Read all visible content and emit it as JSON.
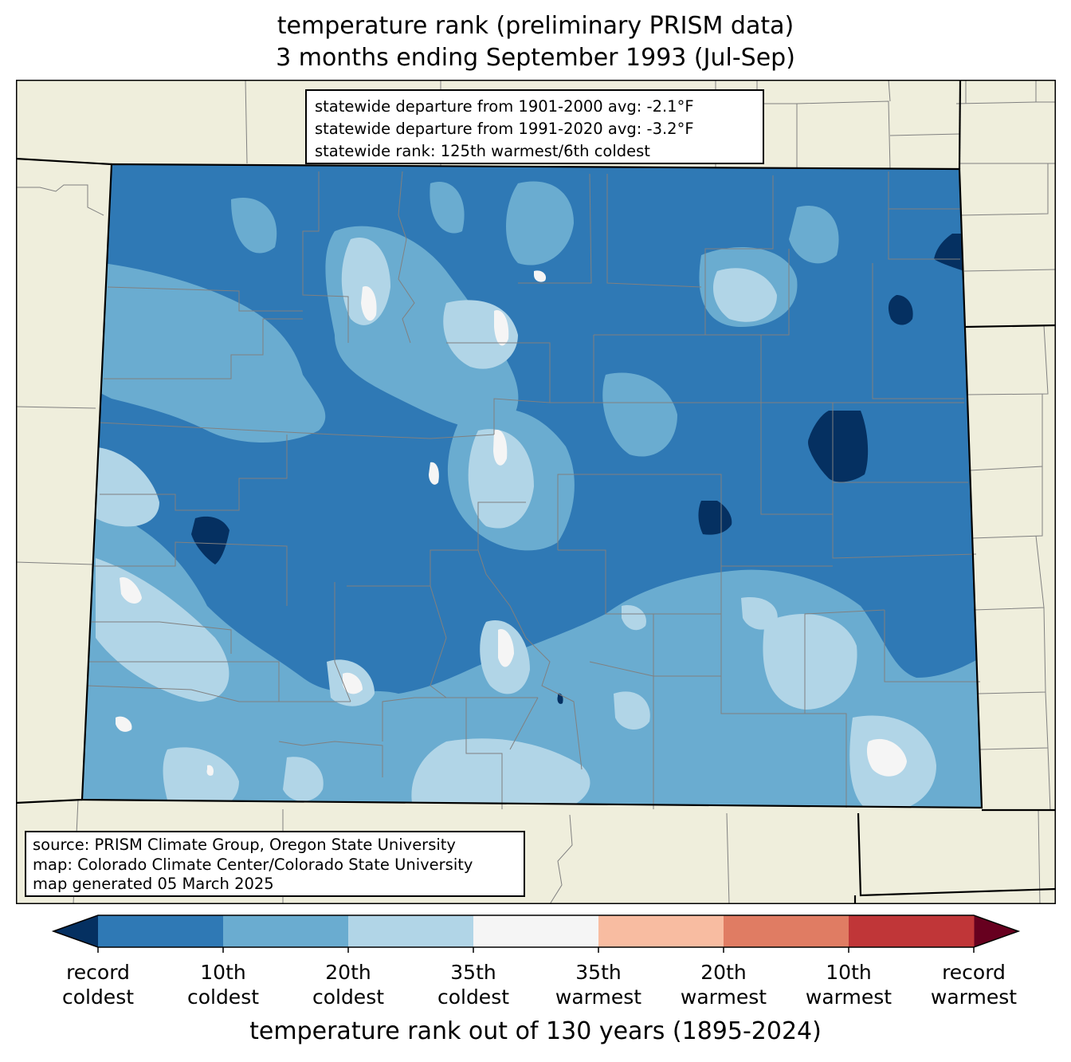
{
  "title": {
    "line1": "temperature rank (preliminary PRISM data)",
    "line2": "3 months ending September 1993 (Jul-Sep)"
  },
  "stats": {
    "departure_1901_2000": "statewide departure from 1901-2000 avg: -2.1°F",
    "departure_1991_2020": "statewide departure from 1991-2020 avg: -3.2°F",
    "rank": "statewide rank: 125th warmest/6th coldest"
  },
  "source": {
    "line1": "source: PRISM Climate Group, Oregon State University",
    "line2": "map: Colorado Climate Center/Colorado State University",
    "line3": "map generated 05 March 2025"
  },
  "colorbar": {
    "title": "temperature rank out of 130 years (1895-2024)",
    "extend_low_color": "#053061",
    "extend_high_color": "#67001f",
    "bins": [
      {
        "color": "#2f79b5"
      },
      {
        "color": "#6aacd0"
      },
      {
        "color": "#b1d5e7"
      },
      {
        "color": "#f5f5f5"
      },
      {
        "color": "#f8bca1"
      },
      {
        "color": "#e07c63"
      },
      {
        "color": "#c03638"
      }
    ],
    "ticks": [
      {
        "line1": "record",
        "line2": "coldest"
      },
      {
        "line1": "10th",
        "line2": "coldest"
      },
      {
        "line1": "20th",
        "line2": "coldest"
      },
      {
        "line1": "35th",
        "line2": "coldest"
      },
      {
        "line1": "35th",
        "line2": "warmest"
      },
      {
        "line1": "20th",
        "line2": "warmest"
      },
      {
        "line1": "10th",
        "line2": "warmest"
      },
      {
        "line1": "record",
        "line2": "warmest"
      }
    ]
  },
  "map_colors": {
    "background_land": "#efeedc",
    "state_border": "#000000",
    "county_border": "#808080",
    "colorado_base": "#2f79b5",
    "colorado_rank_20": "#6aacd0",
    "colorado_rank_35": "#b1d5e7",
    "colorado_near_normal": "#f5f5f5",
    "colorado_record": "#053061"
  }
}
